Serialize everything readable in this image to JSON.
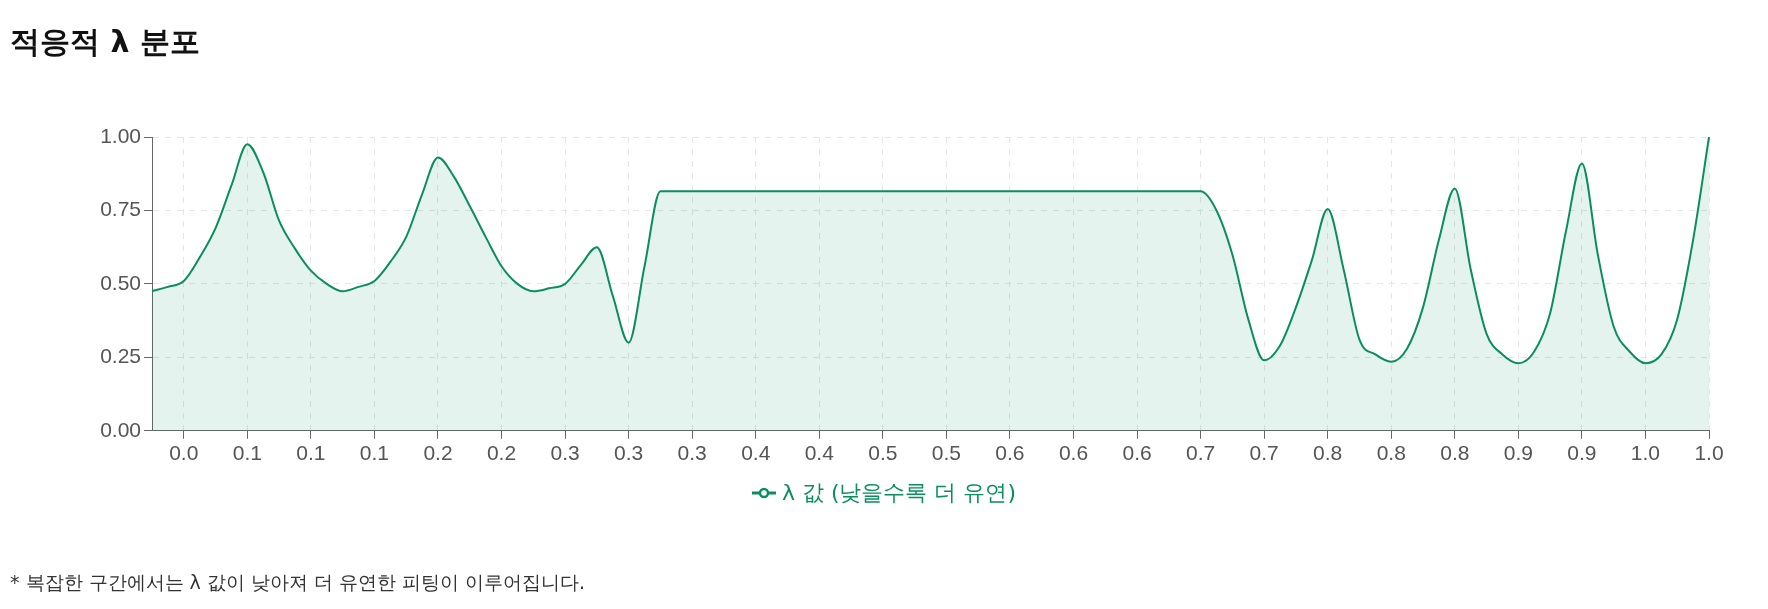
{
  "chart_data": {
    "type": "area",
    "title": "적응적 λ 분포",
    "categories": [
      null,
      null,
      "0.0",
      null,
      null,
      null,
      "0.1",
      null,
      null,
      null,
      "0.1",
      null,
      null,
      null,
      "0.1",
      null,
      null,
      null,
      "0.2",
      null,
      null,
      null,
      "0.2",
      null,
      null,
      null,
      "0.3",
      null,
      null,
      null,
      "0.3",
      null,
      null,
      null,
      "0.3",
      null,
      null,
      null,
      "0.4",
      null,
      null,
      null,
      "0.4",
      null,
      null,
      null,
      "0.5",
      null,
      null,
      null,
      "0.5",
      null,
      null,
      null,
      "0.6",
      null,
      null,
      null,
      "0.6",
      null,
      null,
      null,
      "0.6",
      null,
      null,
      null,
      "0.7",
      null,
      null,
      null,
      "0.7",
      null,
      null,
      null,
      "0.8",
      null,
      null,
      null,
      "0.8",
      null,
      null,
      null,
      "0.8",
      null,
      null,
      null,
      "0.9",
      null,
      null,
      null,
      "0.9",
      null,
      null,
      null,
      "1.0",
      null,
      null,
      null,
      "1.0"
    ],
    "series": [
      {
        "name": "λ 값 (낮을수록 더 유연)",
        "color": "#0a8f5c",
        "values": [
          0.475,
          0.49,
          0.51,
          0.59,
          0.69,
          0.835,
          0.975,
          0.88,
          0.715,
          0.62,
          0.545,
          0.5,
          0.475,
          0.49,
          0.51,
          0.575,
          0.66,
          0.805,
          0.93,
          0.865,
          0.765,
          0.66,
          0.56,
          0.5,
          0.475,
          0.485,
          0.5,
          0.565,
          0.625,
          0.46,
          0.3,
          0.56,
          0.815,
          0.815,
          0.815,
          0.815,
          0.815,
          0.815,
          0.815,
          0.815,
          0.815,
          0.815,
          0.815,
          0.815,
          0.815,
          0.815,
          0.815,
          0.815,
          0.815,
          0.815,
          0.815,
          0.815,
          0.815,
          0.815,
          0.815,
          0.815,
          0.815,
          0.815,
          0.815,
          0.815,
          0.815,
          0.815,
          0.815,
          0.815,
          0.815,
          0.815,
          0.815,
          0.75,
          0.6,
          0.38,
          0.24,
          0.29,
          0.42,
          0.58,
          0.755,
          0.55,
          0.31,
          0.26,
          0.235,
          0.28,
          0.42,
          0.65,
          0.825,
          0.55,
          0.33,
          0.26,
          0.23,
          0.27,
          0.4,
          0.68,
          0.91,
          0.6,
          0.355,
          0.27,
          0.23,
          0.26,
          0.38,
          0.65,
          1.0
        ]
      }
    ],
    "ylim": [
      0,
      1
    ],
    "yticks": [
      {
        "value": 0,
        "label": "0.00"
      },
      {
        "value": 0.25,
        "label": "0.25"
      },
      {
        "value": 0.5,
        "label": "0.50"
      },
      {
        "value": 0.75,
        "label": "0.75"
      },
      {
        "value": 1,
        "label": "1.00"
      }
    ],
    "grid": true,
    "legend": "bottom",
    "line_style": "solid",
    "annotations": [
      "* 복잡한 구간에서는 λ 값이 낮아져 더 유연한 피팅이 이루어집니다."
    ]
  }
}
